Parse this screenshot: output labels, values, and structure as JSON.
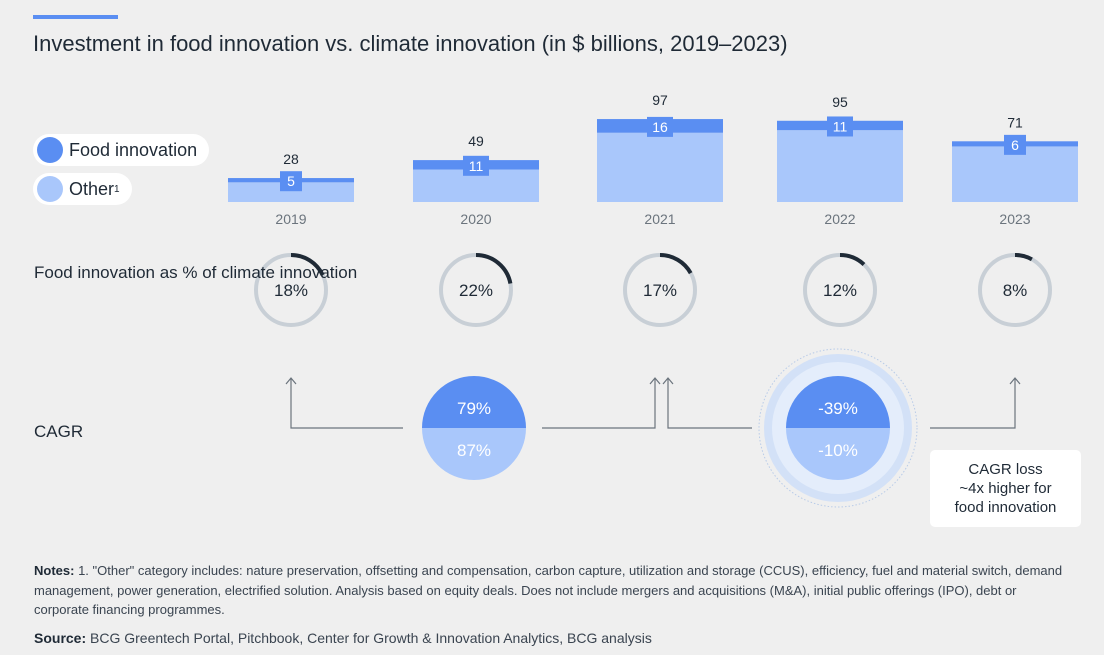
{
  "title": "Investment in food innovation vs. climate innovation (in $ billions, 2019–2023)",
  "legend": {
    "food_label": "Food innovation",
    "other_label": "Other",
    "other_sup": "1"
  },
  "colors": {
    "food": "#5a8ef2",
    "other": "#a9c7fb",
    "ring_track": "#c8cfd6",
    "ring_fill": "#1f2a36",
    "background": "#efefef"
  },
  "chart_data": [
    {
      "type": "bar",
      "stacked": true,
      "categories": [
        "2019",
        "2020",
        "2021",
        "2022",
        "2023"
      ],
      "series": [
        {
          "name": "Food innovation",
          "values": [
            5,
            11,
            16,
            11,
            6
          ]
        },
        {
          "name": "Other",
          "values": [
            23,
            38,
            81,
            84,
            65
          ]
        }
      ],
      "totals": [
        28,
        49,
        97,
        95,
        71
      ],
      "food_labels": [
        "5",
        "11",
        "16",
        "11",
        "6"
      ],
      "total_labels": [
        "28",
        "49",
        "97",
        "95",
        "71"
      ]
    },
    {
      "type": "pie",
      "subtype": "donut",
      "categories": [
        "2019",
        "2020",
        "2021",
        "2022",
        "2023"
      ],
      "values": [
        18,
        22,
        17,
        12,
        8
      ],
      "labels": [
        "18%",
        "22%",
        "17%",
        "12%",
        "8%"
      ]
    }
  ],
  "share_label": "Food innovation as % of climate innovation",
  "cagr": {
    "label": "CAGR",
    "periods": [
      {
        "from": "2019",
        "to": "2021",
        "food": "79%",
        "other": "87%"
      },
      {
        "from": "2021",
        "to": "2023",
        "food": "-39%",
        "other": "-10%"
      }
    ],
    "callout": [
      "CAGR loss",
      "~4x higher for",
      "food innovation"
    ]
  },
  "notes": {
    "label": "Notes:",
    "text": "1. \"Other\" category includes: nature preservation, offsetting and compensation, carbon capture, utilization and storage (CCUS), efficiency, fuel and material switch, demand management, power generation, electrified solution. Analysis based on equity deals. Does not include mergers and acquisitions (M&A), initial public offerings (IPO), debt or corporate financing programmes."
  },
  "source": {
    "label": "Source:",
    "text": "BCG Greentech Portal, Pitchbook, Center for Growth & Innovation Analytics, BCG analysis"
  }
}
